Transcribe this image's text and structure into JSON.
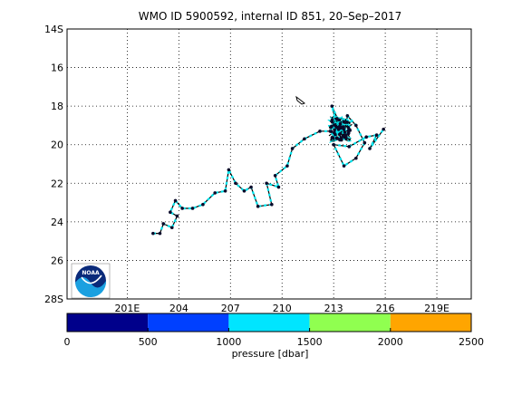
{
  "title": "WMO ID 5900592, internal ID 851, 20–Sep–2017",
  "map": {
    "lon_ticks": [
      "201E",
      "204",
      "207",
      "210",
      "213",
      "216",
      "219E"
    ],
    "lat_ticks": [
      "14S",
      "16",
      "18",
      "20",
      "22",
      "24",
      "26",
      "28S"
    ],
    "lon_range": [
      197.5,
      221.0
    ],
    "lat_range": [
      14,
      28
    ],
    "grid": true,
    "track_color": "#00e5ee",
    "marker_color": "#0a0a2a"
  },
  "colorbar": {
    "ticks": [
      "0",
      "500",
      "1000",
      "1500",
      "2000",
      "2500"
    ],
    "label": "pressure [dbar]",
    "colors": [
      "#00008b",
      "#0040ff",
      "#00e5ff",
      "#90ff50",
      "#ffa500"
    ]
  },
  "logo": {
    "text": "NOAA"
  },
  "chart_data": {
    "type": "scatter",
    "title": "WMO ID 5900592, internal ID 851, 20–Sep–2017",
    "xlabel": "",
    "ylabel": "",
    "x_units": "degrees east longitude",
    "y_units": "degrees south latitude",
    "xlim": [
      197.5,
      221.0
    ],
    "ylim": [
      14,
      28
    ],
    "track": [
      [
        202.5,
        24.6
      ],
      [
        202.9,
        24.6
      ],
      [
        203.1,
        24.1
      ],
      [
        203.6,
        24.3
      ],
      [
        203.9,
        23.7
      ],
      [
        203.5,
        23.5
      ],
      [
        203.8,
        22.9
      ],
      [
        204.2,
        23.3
      ],
      [
        204.8,
        23.3
      ],
      [
        205.4,
        23.1
      ],
      [
        206.1,
        22.5
      ],
      [
        206.7,
        22.4
      ],
      [
        206.9,
        21.3
      ],
      [
        207.3,
        22.0
      ],
      [
        207.8,
        22.4
      ],
      [
        208.2,
        22.2
      ],
      [
        208.6,
        23.2
      ],
      [
        209.4,
        23.1
      ],
      [
        209.1,
        22.0
      ],
      [
        209.8,
        22.2
      ],
      [
        209.6,
        21.6
      ],
      [
        210.3,
        21.1
      ],
      [
        210.6,
        20.2
      ],
      [
        211.3,
        19.7
      ],
      [
        212.2,
        19.3
      ],
      [
        212.8,
        19.3
      ],
      [
        213.1,
        18.7
      ],
      [
        212.9,
        18.0
      ],
      [
        213.3,
        18.8
      ],
      [
        213.6,
        19.6
      ],
      [
        213.8,
        18.5
      ],
      [
        214.3,
        19.0
      ],
      [
        214.8,
        19.9
      ],
      [
        214.3,
        20.7
      ],
      [
        213.6,
        21.1
      ],
      [
        213.0,
        20.0
      ],
      [
        213.9,
        20.1
      ],
      [
        214.9,
        19.6
      ],
      [
        215.5,
        19.5
      ],
      [
        215.1,
        20.2
      ],
      [
        215.9,
        19.2
      ]
    ],
    "cluster_center": [
      213.4,
      19.2
    ],
    "pressure_bins_dbar": [
      0,
      500,
      1000,
      1500,
      2000,
      2500
    ]
  }
}
